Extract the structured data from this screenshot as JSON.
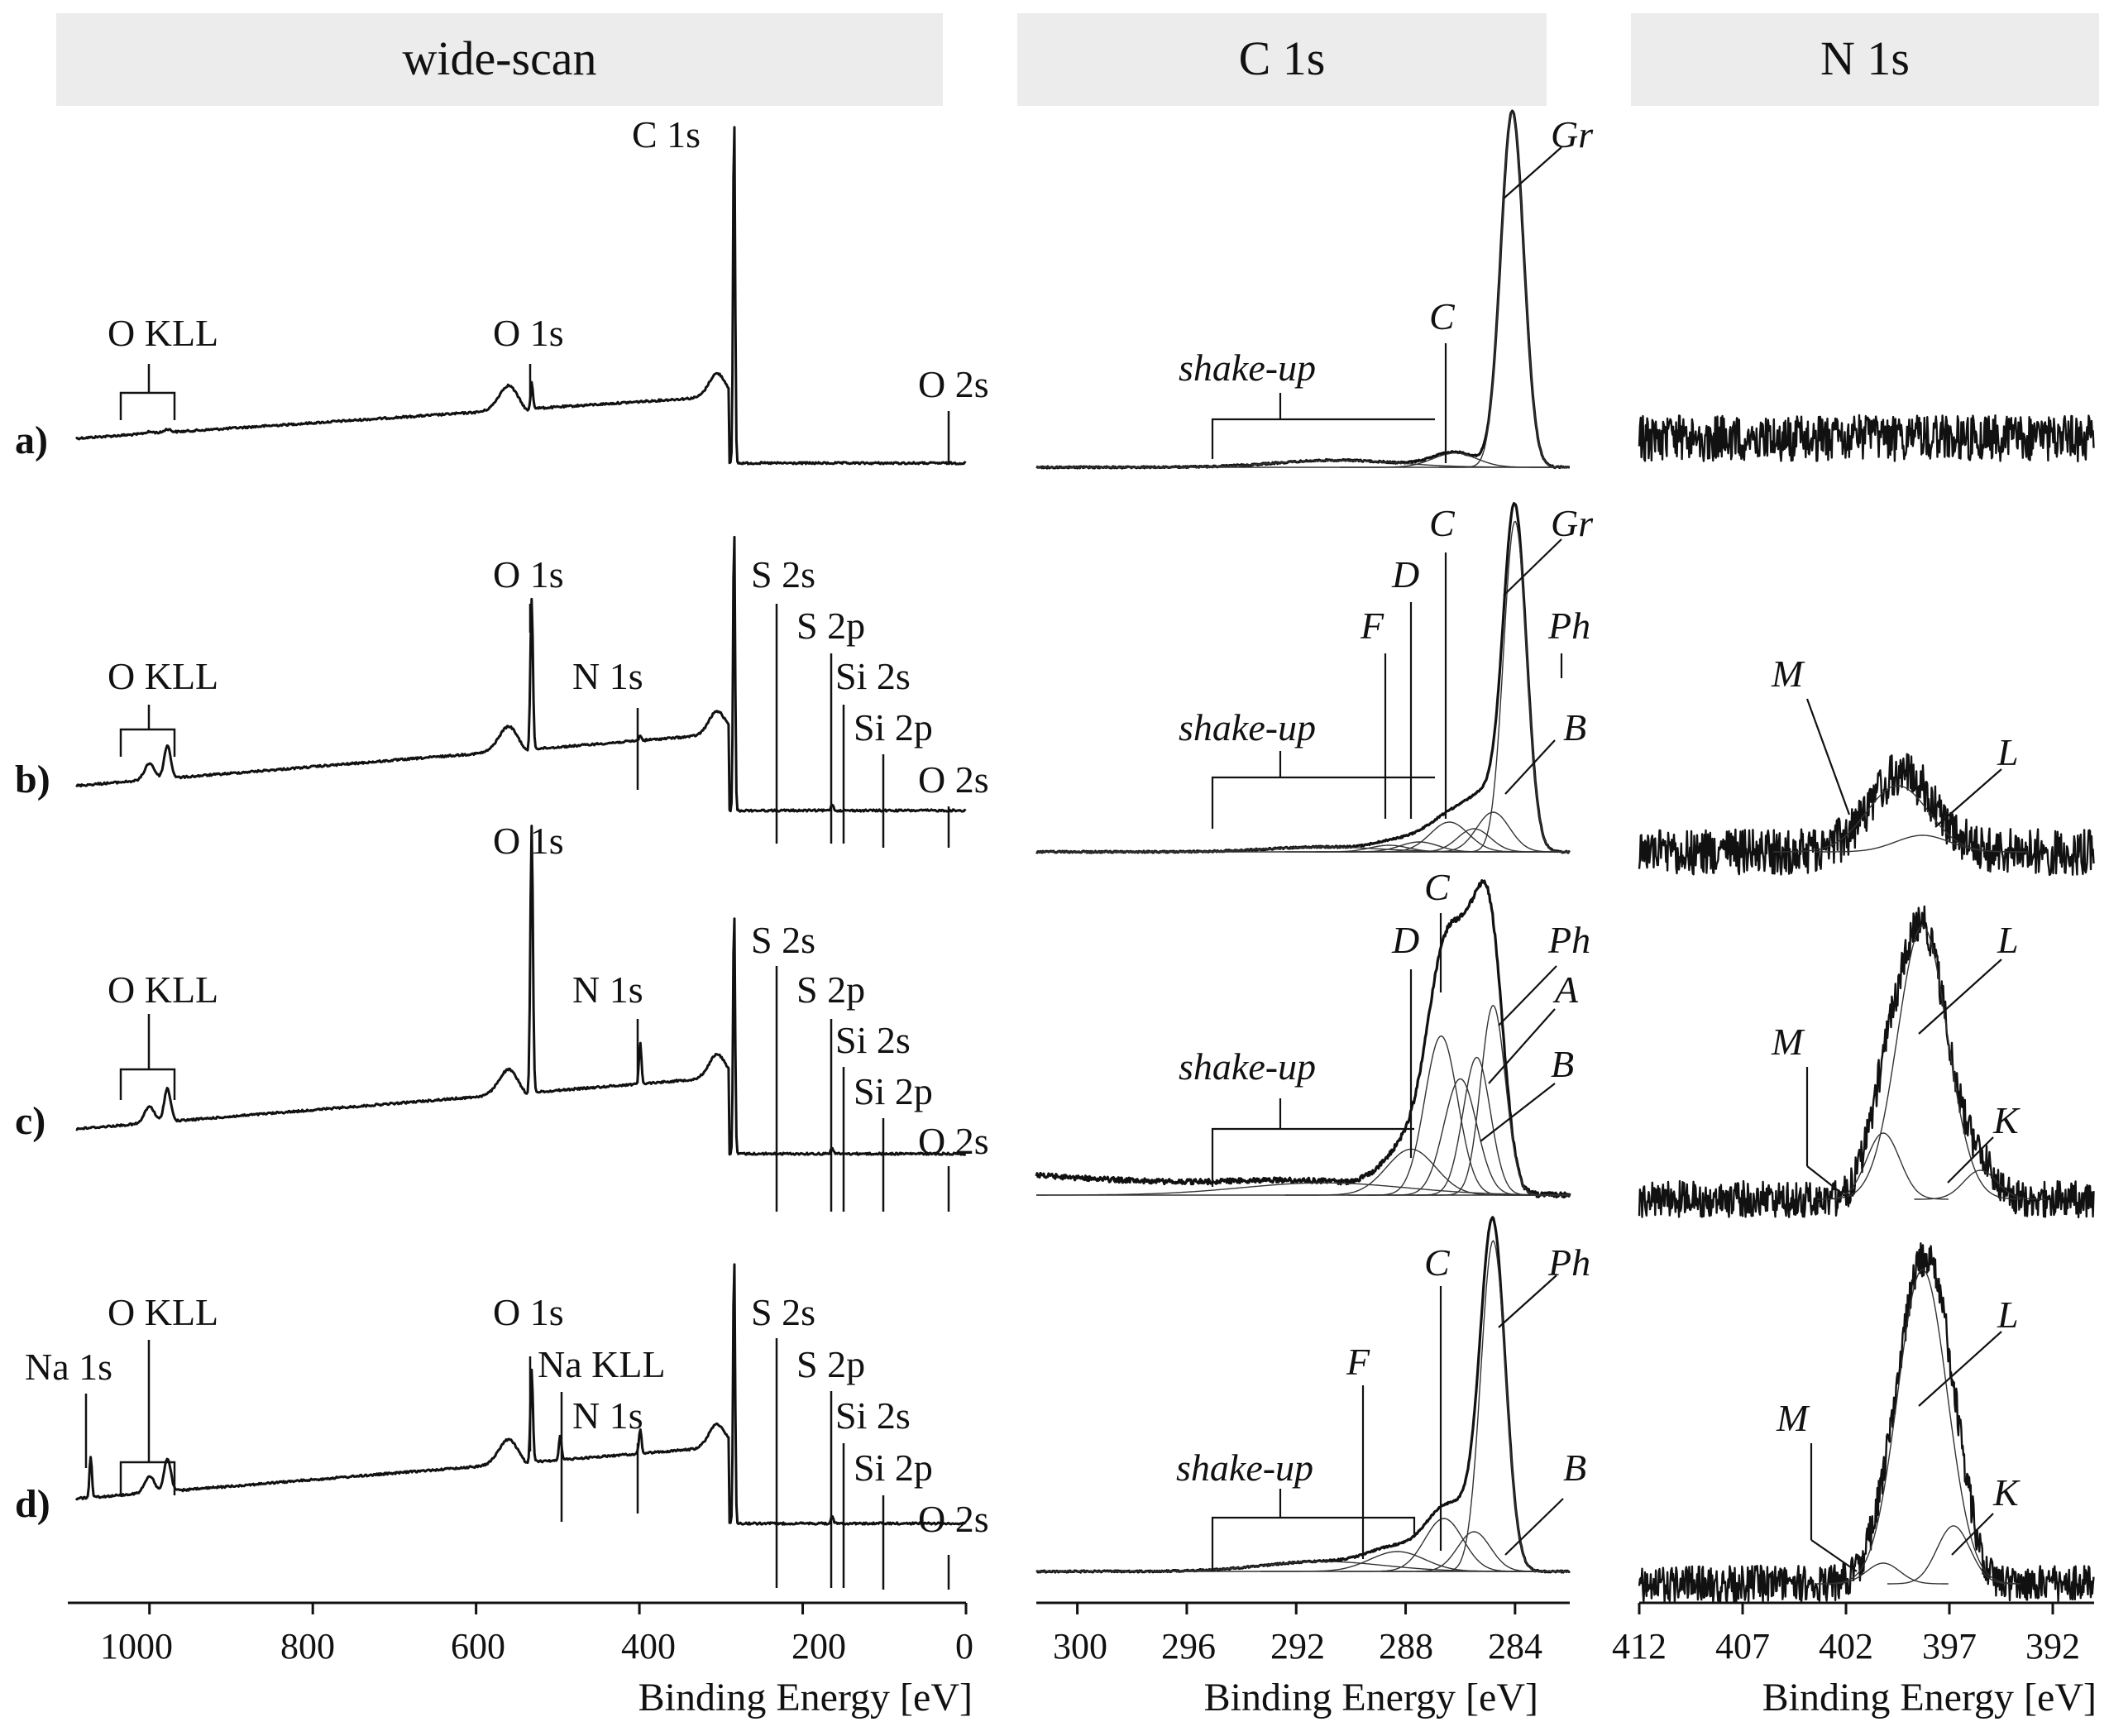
{
  "panels": [
    {
      "title": "wide-scan",
      "xlabel": "Binding Energy [eV]",
      "ticks": [
        "1000",
        "800",
        "600",
        "400",
        "200",
        "0"
      ],
      "xlim": [
        1100,
        0
      ]
    },
    {
      "title": "C 1s",
      "xlabel": "Binding Energy [eV]",
      "ticks": [
        "300",
        "296",
        "292",
        "288",
        "284"
      ],
      "xlim": [
        301.5,
        282
      ]
    },
    {
      "title": "N 1s",
      "xlabel": "Binding Energy [eV]",
      "ticks": [
        "412",
        "407",
        "402",
        "397",
        "392"
      ],
      "xlim": [
        412,
        390
      ]
    }
  ],
  "rows": [
    "a)",
    "b)",
    "c)",
    "d)"
  ],
  "wide_labels": {
    "a": [
      "O KLL",
      "O 1s",
      "C 1s",
      "O 2s"
    ],
    "b": [
      "O KLL",
      "O 1s",
      "N 1s",
      "S 2s",
      "S 2p",
      "Si 2s",
      "Si 2p",
      "O 2s"
    ],
    "c": [
      "O KLL",
      "O 1s",
      "N 1s",
      "S 2s",
      "S 2p",
      "Si 2s",
      "Si 2p",
      "O 2s"
    ],
    "d": [
      "Na 1s",
      "O KLL",
      "O 1s",
      "Na KLL",
      "N 1s",
      "S 2s",
      "S 2p",
      "Si 2s",
      "Si 2p",
      "O 2s"
    ]
  },
  "c1s_labels": {
    "a": [
      "shake-up",
      "C",
      "Gr"
    ],
    "b": [
      "shake-up",
      "F",
      "D",
      "C",
      "Gr",
      "Ph",
      "B"
    ],
    "c": [
      "shake-up",
      "D",
      "C",
      "Ph",
      "A",
      "B"
    ],
    "d": [
      "shake-up",
      "F",
      "C",
      "Ph",
      "B"
    ]
  },
  "n1s_labels": {
    "b": [
      "M",
      "L"
    ],
    "c": [
      "M",
      "L",
      "K"
    ],
    "d": [
      "M",
      "L",
      "K"
    ]
  },
  "chart_data": [
    {
      "type": "line",
      "title": "wide-scan",
      "xlabel": "Binding Energy [eV]",
      "xlim": [
        1100,
        0
      ],
      "series": [
        {
          "name": "a)",
          "peaks": [
            {
              "label": "C 1s",
              "x": 284
            },
            {
              "label": "O 1s",
              "x": 532
            },
            {
              "label": "O KLL",
              "x": 980
            },
            {
              "label": "O 2s",
              "x": 23
            }
          ]
        },
        {
          "name": "b)",
          "peaks": [
            {
              "label": "C 1s",
              "x": 284
            },
            {
              "label": "O 1s",
              "x": 532
            },
            {
              "label": "N 1s",
              "x": 400
            },
            {
              "label": "O KLL",
              "x": 980
            },
            {
              "label": "S 2s",
              "x": 228
            },
            {
              "label": "S 2p",
              "x": 164
            },
            {
              "label": "Si 2s",
              "x": 151
            },
            {
              "label": "Si 2p",
              "x": 100
            },
            {
              "label": "O 2s",
              "x": 23
            }
          ]
        },
        {
          "name": "c)",
          "peaks": [
            {
              "label": "C 1s",
              "x": 284
            },
            {
              "label": "O 1s",
              "x": 532
            },
            {
              "label": "N 1s",
              "x": 399
            },
            {
              "label": "O KLL",
              "x": 980
            },
            {
              "label": "S 2s",
              "x": 228
            },
            {
              "label": "S 2p",
              "x": 164
            },
            {
              "label": "Si 2s",
              "x": 151
            },
            {
              "label": "Si 2p",
              "x": 100
            },
            {
              "label": "O 2s",
              "x": 23
            }
          ]
        },
        {
          "name": "d)",
          "peaks": [
            {
              "label": "C 1s",
              "x": 284
            },
            {
              "label": "O 1s",
              "x": 532
            },
            {
              "label": "N 1s",
              "x": 399
            },
            {
              "label": "Na 1s",
              "x": 1072
            },
            {
              "label": "Na KLL",
              "x": 497
            },
            {
              "label": "O KLL",
              "x": 980
            },
            {
              "label": "S 2s",
              "x": 228
            },
            {
              "label": "S 2p",
              "x": 164
            },
            {
              "label": "Si 2s",
              "x": 151
            },
            {
              "label": "Si 2p",
              "x": 100
            },
            {
              "label": "O 2s",
              "x": 23
            }
          ]
        }
      ]
    },
    {
      "type": "line",
      "title": "C 1s",
      "xlabel": "Binding Energy [eV]",
      "xlim": [
        301.5,
        282
      ],
      "series": [
        {
          "name": "a)",
          "components": [
            {
              "label": "Gr",
              "x": 284.1
            },
            {
              "label": "C",
              "x": 286.2
            },
            {
              "label": "shake-up",
              "x": 291
            }
          ]
        },
        {
          "name": "b)",
          "components": [
            {
              "label": "Gr",
              "x": 284.0
            },
            {
              "label": "Ph",
              "x": 284.8
            },
            {
              "label": "B",
              "x": 285.5
            },
            {
              "label": "C",
              "x": 286.4
            },
            {
              "label": "D",
              "x": 287.5
            },
            {
              "label": "F",
              "x": 288.6
            },
            {
              "label": "shake-up",
              "x": 291
            }
          ]
        },
        {
          "name": "c)",
          "components": [
            {
              "label": "Ph",
              "x": 284.8
            },
            {
              "label": "A",
              "x": 285.4
            },
            {
              "label": "B",
              "x": 286.0
            },
            {
              "label": "C",
              "x": 286.7
            },
            {
              "label": "D",
              "x": 287.8
            },
            {
              "label": "shake-up",
              "x": 291
            }
          ]
        },
        {
          "name": "d)",
          "components": [
            {
              "label": "Ph",
              "x": 284.8
            },
            {
              "label": "B",
              "x": 285.5
            },
            {
              "label": "C",
              "x": 286.6
            },
            {
              "label": "F",
              "x": 288.3
            },
            {
              "label": "shake-up",
              "x": 291
            }
          ]
        }
      ]
    },
    {
      "type": "line",
      "title": "N 1s",
      "xlabel": "Binding Energy [eV]",
      "xlim": [
        412,
        390
      ],
      "series": [
        {
          "name": "a)",
          "components": []
        },
        {
          "name": "b)",
          "components": [
            {
              "label": "M",
              "x": 399.5
            },
            {
              "label": "L",
              "x": 398.3
            }
          ]
        },
        {
          "name": "c)",
          "components": [
            {
              "label": "M",
              "x": 400.2
            },
            {
              "label": "L",
              "x": 398.3
            },
            {
              "label": "K",
              "x": 395.5
            }
          ]
        },
        {
          "name": "d)",
          "components": [
            {
              "label": "M",
              "x": 400.2
            },
            {
              "label": "L",
              "x": 398.3
            },
            {
              "label": "K",
              "x": 396.8
            }
          ]
        }
      ]
    }
  ]
}
